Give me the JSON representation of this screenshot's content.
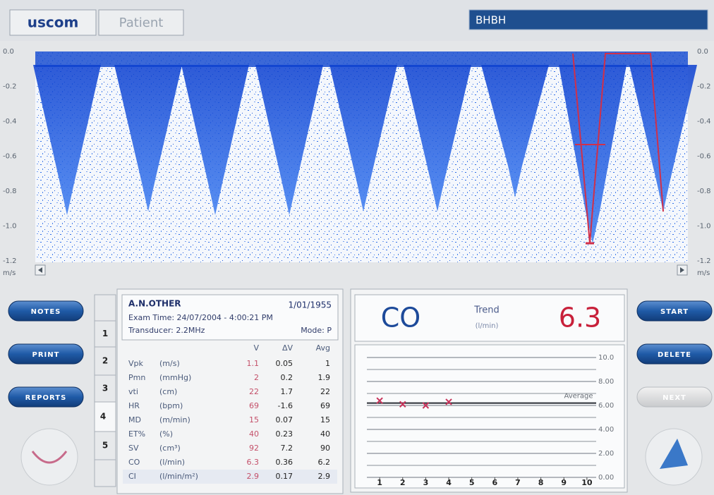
{
  "header": {
    "logo": "uscom",
    "tab": "Patient",
    "patient_id": "BHBH"
  },
  "velocity_axis": {
    "labels": [
      "0.0",
      "-0.2",
      "-0.4",
      "-0.6",
      "-0.8",
      "-1.0",
      "-1.2"
    ],
    "unit": "m/s"
  },
  "buttons_left": [
    "NOTES",
    "PRINT",
    "REPORTS"
  ],
  "buttons_right": [
    "START",
    "DELETE",
    "NEXT"
  ],
  "beat_tabs": [
    null,
    "1",
    "2",
    "3",
    "4",
    "5",
    null
  ],
  "patient": {
    "name": "A.N.OTHER",
    "dob": "1/01/1955",
    "exam_time": "Exam Time: 24/07/2004 - 4:00:21 PM",
    "transducer": "Transducer: 2.2MHz",
    "mode": "Mode: P"
  },
  "measurements": {
    "columns": [
      "V",
      "ΔV",
      "Avg"
    ],
    "rows": [
      [
        "Vpk",
        "(m/s)",
        "1.1",
        "0.05",
        "1"
      ],
      [
        "Pmn",
        "(mmHg)",
        "2",
        "0.2",
        "1.9"
      ],
      [
        "vti",
        "(cm)",
        "22",
        "1.7",
        "22"
      ],
      [
        "HR",
        "(bpm)",
        "69",
        "-1.6",
        "69"
      ],
      [
        "MD",
        "(m/min)",
        "15",
        "0.07",
        "15"
      ],
      [
        "ET%",
        "(%)",
        "40",
        "0.23",
        "40"
      ],
      [
        "SV",
        "(cm³)",
        "92",
        "7.2",
        "90"
      ],
      [
        "CO",
        "(l/min)",
        "6.3",
        "0.36",
        "6.2"
      ],
      [
        "CI",
        "(l/min/m²)",
        "2.9",
        "0.17",
        "2.9"
      ]
    ]
  },
  "trend": {
    "parameter": "CO",
    "label": "Trend",
    "unit": "(l/min)",
    "current": "6.3"
  },
  "trend_chart": {
    "type": "scatter",
    "x": [
      1,
      2,
      3,
      4
    ],
    "values": [
      6.4,
      6.1,
      6.0,
      6.3
    ],
    "color": "#c8325a",
    "xlim": [
      0.2,
      10.8
    ],
    "xticks": [
      1,
      2,
      3,
      4,
      5,
      6,
      7,
      8,
      9,
      10
    ],
    "ylim": [
      0,
      10
    ],
    "yticks": [
      {
        "value": 0,
        "label": "0.00"
      },
      {
        "value": 2,
        "label": "2.00"
      },
      {
        "value": 4,
        "label": "4.00"
      },
      {
        "value": 6,
        "label": "6.00"
      },
      {
        "value": 8,
        "label": "8.00"
      },
      {
        "value": 10,
        "label": "10.0"
      }
    ],
    "average": 6.2,
    "average_label": "Average",
    "grid": true
  }
}
